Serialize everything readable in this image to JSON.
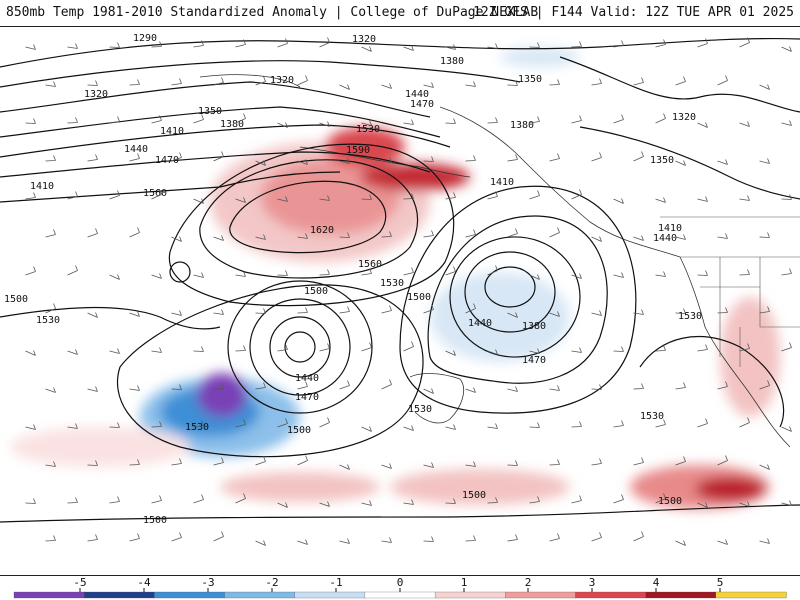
{
  "header": {
    "left": "850mb Temp 1981-2010 Standardized Anomaly | College of DuPage NEXLAB",
    "right": "12Z GFS | F144 Valid: 12Z TUE APR 01 2025"
  },
  "contour_labels": [
    "1290",
    "1320",
    "1320",
    "1320",
    "1320",
    "1350",
    "1350",
    "1350",
    "1380",
    "1380",
    "1380",
    "1380",
    "1410",
    "1410",
    "1410",
    "1410",
    "1440",
    "1440",
    "1440",
    "1440",
    "1440",
    "1470",
    "1470",
    "1470",
    "1470",
    "1500",
    "1500",
    "1500",
    "1500",
    "1500",
    "1500",
    "1500",
    "1530",
    "1530",
    "1530",
    "1530",
    "1530",
    "1530",
    "1530",
    "1560",
    "1560",
    "1590",
    "1620"
  ],
  "colorbar": {
    "ticks": [
      "-5",
      "-4",
      "-3",
      "-2",
      "-1",
      "0",
      "1",
      "2",
      "3",
      "4",
      "5"
    ],
    "colors": [
      "#7a3fb5",
      "#1f3f8a",
      "#3d8fd6",
      "#7fb9e6",
      "#c7def4",
      "#ffffff",
      "#f7d2d2",
      "#ef9c9c",
      "#d9474f",
      "#a01622",
      "#f5d23a"
    ]
  }
}
